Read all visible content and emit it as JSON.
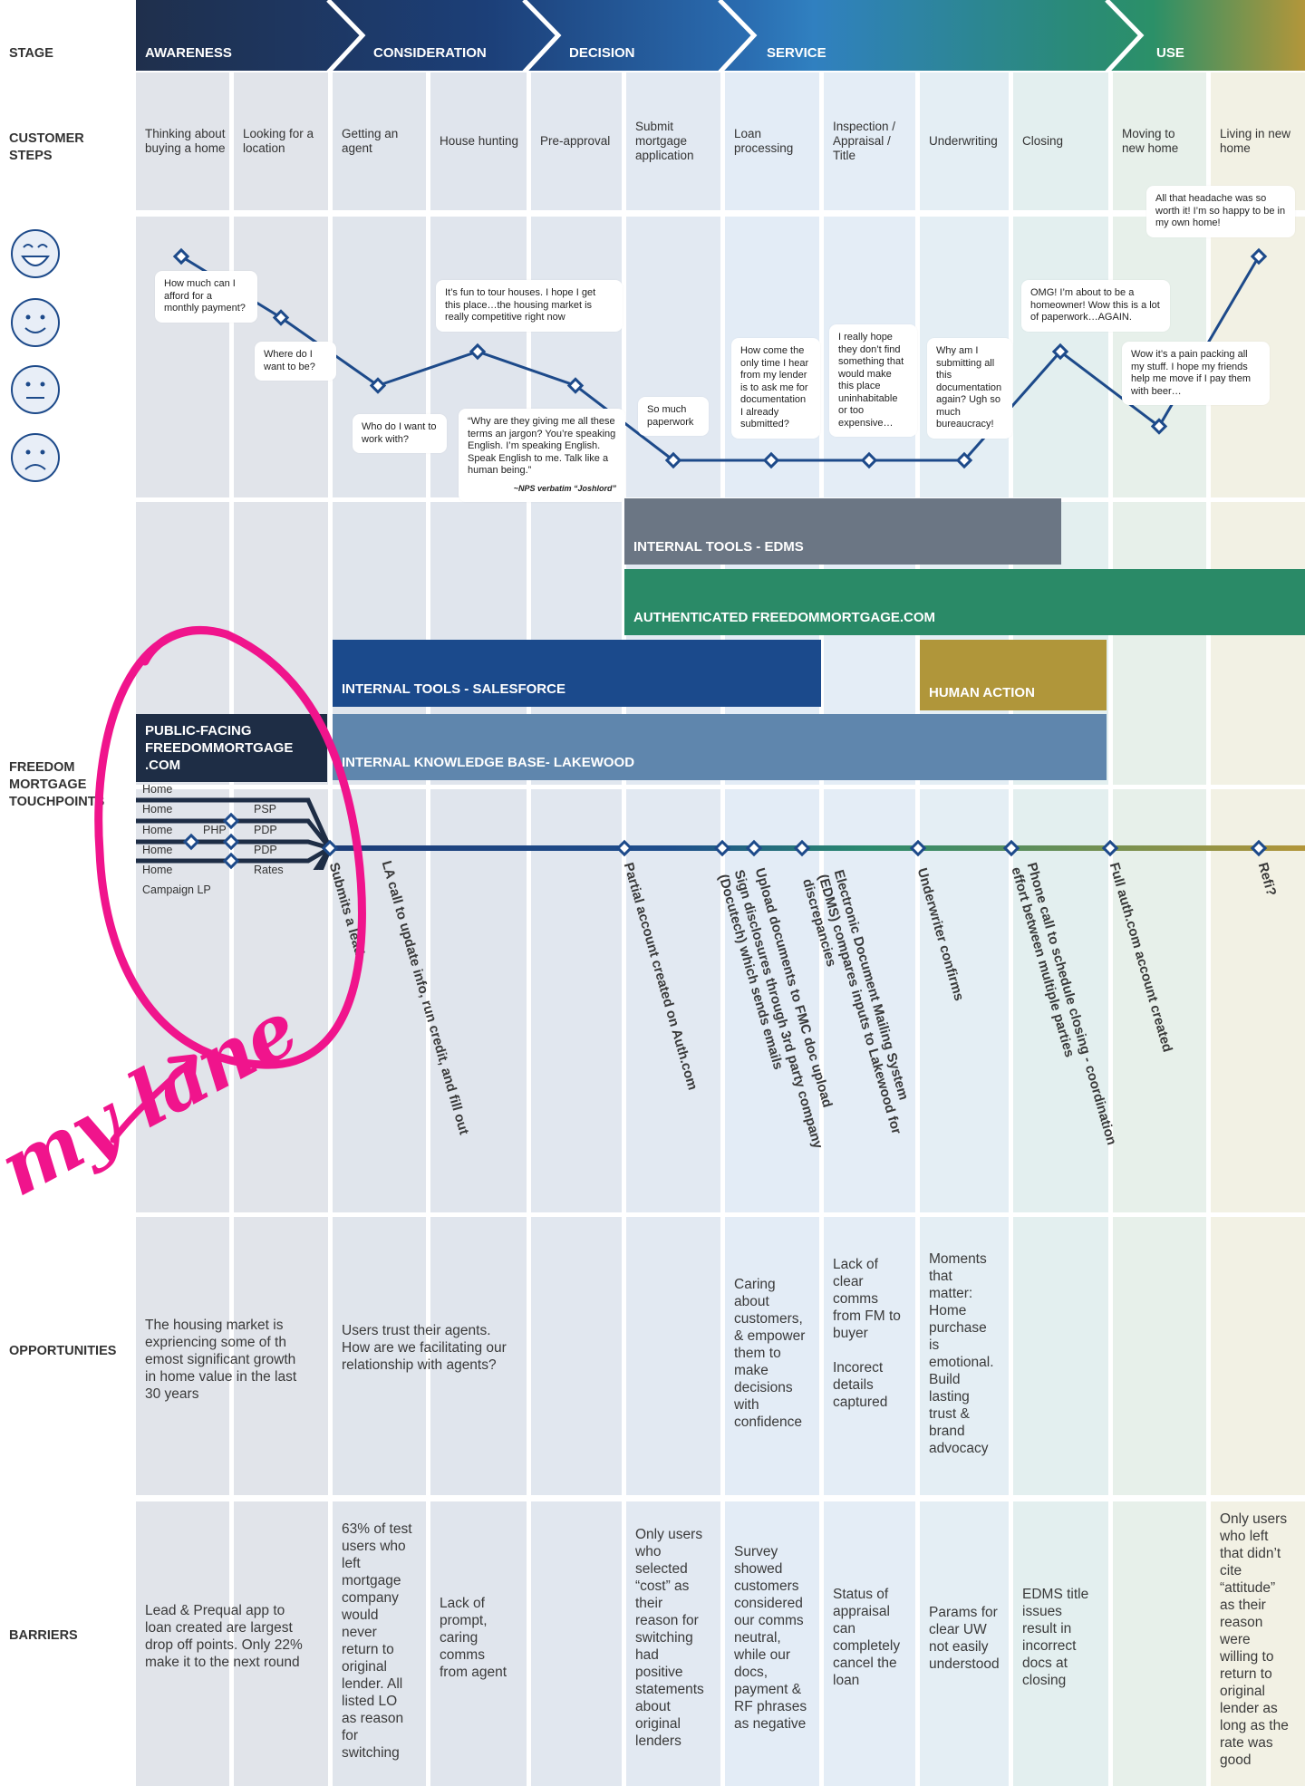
{
  "row_labels": {
    "stage": "STAGE",
    "customer_steps": "CUSTOMER\nSTEPS",
    "touchpoints": "FREEDOM\nMORTGAGE\nTOUCHPOINTS",
    "opportunities": "OPPORTUNITIES",
    "barriers": "BARRIERS"
  },
  "stages": [
    "AWARENESS",
    "CONSIDERATION",
    "DECISION",
    "SERVICE",
    "USE"
  ],
  "steps": [
    "Thinking about buying a home",
    "Looking for a location",
    "Getting an agent",
    "House hunting",
    "Pre-approval",
    "Submit mortgage application",
    "Loan processing",
    "Inspection / Appraisal / Title",
    "Underwriting",
    "Closing",
    "Moving to new home",
    "Living in new home"
  ],
  "emotion_faces": [
    "very-happy-face-icon",
    "happy-face-icon",
    "neutral-face-icon",
    "sad-face-icon"
  ],
  "emotion_levels": [
    4,
    3.1,
    2.1,
    2.6,
    2.1,
    1,
    1,
    1,
    1,
    2.6,
    1.5,
    4
  ],
  "bubbles": [
    "How much can I afford for a monthly payment?",
    "Where do I want to be?",
    "Who do I want to work with?",
    "It’s fun to tour houses. I hope I get this place…the housing market is really competitive right now",
    "“Why are they giving me all these terms an jargon? You’re speaking English. I’m speaking English. Speak English to me. Talk like a human being.”",
    "So much paperwork",
    "How come the only time I hear from my lender is to ask me for documentation I already submitted?",
    "I really hope they don’t find something that would make this place uninhabitable or too expensive…",
    "Why am I submitting all this documentation again? Ugh so much bureaucracy!",
    "OMG! I’m about to be a homeowner! Wow this is a lot of paperwork…AGAIN.",
    "Wow it’s a pain packing all my stuff. I hope my friends help me move if I pay them with beer…",
    "All that headache was so worth it! I’m so happy to be in my own home!"
  ],
  "bubble_signature": "~NPS verbatim “Joshlord”",
  "systems": {
    "edms": "INTERNAL TOOLS - EDMS",
    "authenticated": "AUTHENTICATED FREEDOMMORTGAGE.COM",
    "salesforce": "INTERNAL TOOLS - SALESFORCE",
    "human_action": "HUMAN ACTION",
    "public_facing": "PUBLIC-FACING FREEDOMMORTGAGE .COM",
    "knowledge_base": "INTERNAL KNOWLEDGE BASE- LAKEWOOD"
  },
  "system_colors": {
    "edms": "#6b7684",
    "authenticated": "#2a8a67",
    "salesforce": "#1b4a8c",
    "human_action": "#b0963a",
    "public_facing": "#1e2d45",
    "knowledge_base": "#5f86ad"
  },
  "public_paths": [
    {
      "start": "Home",
      "mid": "",
      "end": ""
    },
    {
      "start": "Home",
      "mid": "",
      "end": "PSP"
    },
    {
      "start": "Home",
      "mid": "PHP",
      "end": "PDP"
    },
    {
      "start": "Home",
      "mid": "",
      "end": "PDP"
    },
    {
      "start": "Home",
      "mid": "",
      "end": "Rates"
    },
    {
      "start": "Campaign LP",
      "mid": "",
      "end": ""
    }
  ],
  "touchpoints": [
    "Submits a lead",
    "LA call to update info, run credit, and fill out",
    "Partial account created on Auth.com",
    "Sign disclosures through 3rd party company\n(Docutech) which sends emails",
    "Upload documents to FMC doc upload",
    "Electronic Document Mailing System\n(EDMS) compares inputs to Lakewood for\ndiscrepancies",
    "Underwriter confirms",
    "Phone call to schedule closing - coordination\neffort between multiple parties",
    "Full auth.com account created",
    "Refi?"
  ],
  "opportunities": {
    "awareness": "The housing market is\nexpriencing some of th\nemost significant growth\nin home value in the last\n30 years",
    "consideration": "Users trust their agents.\nHow are we facilitating our\nrelationship with agents?",
    "loan_processing": "Caring\nabout\ncustomers,\n& empower\nthem to\nmake\ndecisions\nwith\nconfidence",
    "inspection": "Lack of\nclear\ncomms\nfrom FM to\nbuyer\n\nIncorect\ndetails\ncaptured",
    "underwriting": "Moments\nthat\nmatter:\nHome\npurchase\nis\nemotional.\nBuild\nlasting\ntrust &\nbrand\nadvocacy"
  },
  "barriers": {
    "awareness": "Lead & Prequal app to\nloan created are largest\ndrop off points. Only 22%\nmake it to the next round",
    "getting_agent": "63% of test\nusers who\nleft\nmortgage\ncompany\nwould\nnever\nreturn to\noriginal\nlender. All\nlisted LO\nas reason\nfor\nswitching",
    "house_hunting": "Lack of\nprompt,\ncaring\ncomms\nfrom agent",
    "submit_application": "Only users\nwho\nselected\n“cost” as\ntheir\nreason for\nswitching\nhad\npositive\nstatements\nabout\noriginal\nlenders",
    "loan_processing": "Survey\nshowed\ncustomers\nconsidered\nour comms\nneutral,\nwhile our\ndocs,\npayment &\nRF phrases\nas negative",
    "inspection": "Status of\nappraisal\ncan\ncompletely\ncancel the\nloan",
    "underwriting": "Params for\nclear UW\nnot easily\nunderstood",
    "closing": "EDMS title\nissues\nresult in\nincorrect\ndocs at\nclosing",
    "living": "Only users\nwho left\nthat didn’t\ncite\n“attitude”\nas their\nreason\nwere\nwilling to\nreturn to\noriginal\nlender as\nlong as the\nrate was\ngood"
  },
  "annotation": {
    "text": "my lane",
    "color": "#f0148c"
  }
}
